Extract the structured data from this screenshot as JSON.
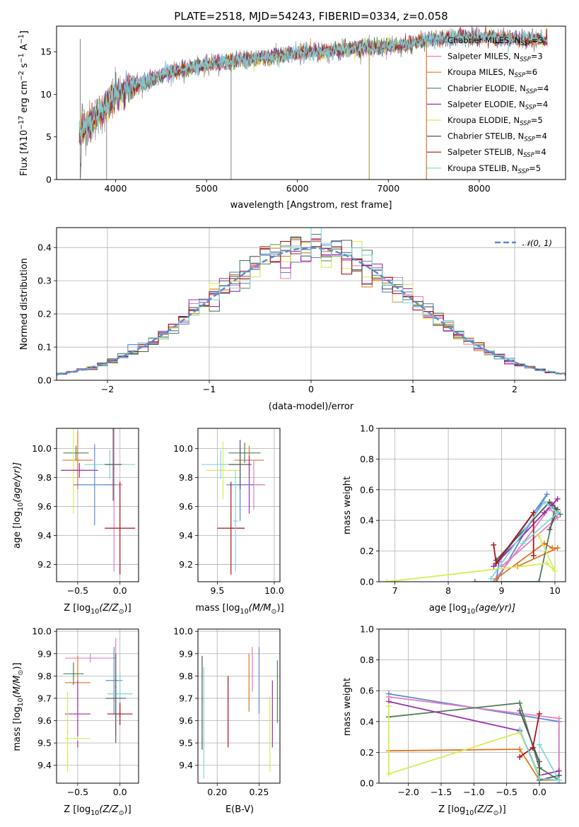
{
  "colors": {
    "Chabrier MILES": "#5b8ad4",
    "Salpeter MILES": "#e37fbf",
    "Kroupa MILES": "#e0761f",
    "Chabrier ELODIE": "#4e7f59",
    "Salpeter ELODIE": "#9b2fae",
    "Kroupa ELODIE": "#d9eb56",
    "Chabrier STELIB": "#555555",
    "Salpeter STELIB": "#a8141a",
    "Kroupa STELIB": "#80d6dc",
    "gaussian": "#5b8ad4",
    "observed": "#7a7a7a"
  },
  "chart_data": [
    {
      "id": "spectrum",
      "type": "line",
      "title": "PLATE=2518, MJD=54243, FIBERID=0334, z=0.058",
      "xlabel": "wavelength [Angstrom, rest frame]",
      "ylabel_parts": [
        "Flux [f",
        "λ",
        "10",
        "−17",
        " erg cm",
        "−2",
        " s",
        "−1",
        " A",
        "−1",
        "]"
      ],
      "xlim": [
        3350,
        8950
      ],
      "ylim": [
        0,
        18
      ],
      "xticks": [
        4000,
        5000,
        6000,
        7000,
        8000
      ],
      "yticks": [
        0,
        5,
        10,
        15
      ],
      "grid": false,
      "legend_position": "right",
      "legend": [
        {
          "name": "Chabrier MILES",
          "nssp": "3"
        },
        {
          "name": "Salpeter MILES",
          "nssp": "3"
        },
        {
          "name": "Kroupa MILES",
          "nssp": "6"
        },
        {
          "name": "Chabrier ELODIE",
          "nssp": "4"
        },
        {
          "name": "Salpeter ELODIE",
          "nssp": "4"
        },
        {
          "name": "Kroupa ELODIE",
          "nssp": "5"
        },
        {
          "name": "Chabrier STELIB",
          "nssp": "4"
        },
        {
          "name": "Salpeter STELIB",
          "nssp": "4"
        },
        {
          "name": "Kroupa STELIB",
          "nssp": "5"
        }
      ],
      "nssp_prefix": "N",
      "nssp_sub": "SSP",
      "continuum": [
        [
          3600,
          5.5
        ],
        [
          3700,
          6.5
        ],
        [
          3800,
          7.5
        ],
        [
          3900,
          8.5
        ],
        [
          4000,
          10.0
        ],
        [
          4100,
          10.5
        ],
        [
          4200,
          11.0
        ],
        [
          4300,
          11.3
        ],
        [
          4400,
          11.8
        ],
        [
          4500,
          12.3
        ],
        [
          4600,
          12.6
        ],
        [
          4800,
          13.0
        ],
        [
          5000,
          13.5
        ],
        [
          5200,
          13.8
        ],
        [
          5500,
          14.2
        ],
        [
          5800,
          14.5
        ],
        [
          6000,
          14.8
        ],
        [
          6300,
          15.0
        ],
        [
          6500,
          15.3
        ],
        [
          6800,
          15.5
        ],
        [
          7000,
          15.6
        ],
        [
          7200,
          15.9
        ],
        [
          7400,
          16.3
        ],
        [
          7600,
          16.6
        ],
        [
          7800,
          16.8
        ],
        [
          8000,
          16.7
        ],
        [
          8200,
          16.6
        ],
        [
          8400,
          16.5
        ],
        [
          8600,
          16.4
        ],
        [
          8750,
          16.4
        ]
      ],
      "observed_end": 7420,
      "spikes": [
        {
          "x": 3900,
          "lo": 0,
          "hi": 7.5
        },
        {
          "x": 5270,
          "lo": 0,
          "hi": 13.5
        },
        {
          "x": 6790,
          "lo": 0,
          "hi": 15.5
        },
        {
          "x": 7420,
          "lo": 0,
          "hi": 16.3
        }
      ]
    },
    {
      "id": "residuals",
      "type": "histogram",
      "xlabel": "(data-model)/error",
      "ylabel": "Normed distribution",
      "xlim": [
        -2.5,
        2.5
      ],
      "ylim": [
        0,
        0.46
      ],
      "xticks": [
        -2,
        -1,
        0,
        1,
        2
      ],
      "yticks": [
        0.0,
        0.1,
        0.2,
        0.3,
        0.4
      ],
      "grid": true,
      "bin_width": 0.1,
      "legend_position": "top-right",
      "gaussian_label": "𝒩(0, 1)"
    },
    {
      "id": "age_vs_Z",
      "type": "errorbar",
      "xlabel_parts": [
        "Z [log",
        "10",
        "(Z/Z",
        "⊙",
        ")]"
      ],
      "ylabel_parts": [
        "age  [log",
        "10",
        "(age/yr)]"
      ],
      "xlim": [
        -0.75,
        0.22
      ],
      "ylim": [
        9.08,
        10.14
      ],
      "xticks": [
        -0.5,
        0.0
      ],
      "yticks": [
        9.2,
        9.4,
        9.6,
        9.8,
        10.0
      ],
      "grid": true,
      "points": [
        {
          "series": "Kroupa MILES",
          "x": -0.5,
          "xerr": 0.18,
          "y": 9.92,
          "yerr": 0.2
        },
        {
          "series": "Chabrier ELODIE",
          "x": -0.52,
          "xerr": 0.15,
          "y": 9.97,
          "yerr": 0.05
        },
        {
          "series": "Kroupa ELODIE",
          "x": -0.55,
          "xerr": 0.12,
          "y": 9.85,
          "yerr": 0.3
        },
        {
          "series": "Salpeter ELODIE",
          "x": -0.48,
          "xerr": 0.22,
          "y": 9.85,
          "yerr": 0.05
        },
        {
          "series": "Salpeter MILES",
          "x": -0.07,
          "xerr": 0.1,
          "y": 9.75,
          "yerr": 0.6
        },
        {
          "series": "Chabrier MILES",
          "x": -0.3,
          "xerr": 0.25,
          "y": 9.75,
          "yerr": 0.28
        },
        {
          "series": "Kroupa STELIB",
          "x": -0.12,
          "xerr": 0.3,
          "y": 9.89,
          "yerr": 0.1
        },
        {
          "series": "Chabrier STELIB",
          "x": -0.08,
          "xerr": 0.1,
          "y": 9.89,
          "yerr": 0.25
        },
        {
          "series": "Salpeter STELIB",
          "x": 0.0,
          "xerr": 0.18,
          "y": 9.45,
          "yerr": 0.32
        }
      ]
    },
    {
      "id": "age_vs_mass",
      "type": "errorbar",
      "xlabel_parts": [
        "mass [log",
        "10",
        "(M/M",
        "⊙",
        ")]"
      ],
      "xlim": [
        9.33,
        10.05
      ],
      "ylim": [
        9.08,
        10.14
      ],
      "xticks": [
        9.5,
        10.0
      ],
      "yticks": [
        9.2,
        9.4,
        9.6,
        9.8,
        10.0
      ],
      "grid": true,
      "points": [
        {
          "series": "Kroupa MILES",
          "x": 9.78,
          "xerr": 0.13,
          "y": 9.92,
          "yerr": 0.1
        },
        {
          "series": "Chabrier ELODIE",
          "x": 9.74,
          "xerr": 0.14,
          "y": 9.97,
          "yerr": 0.07
        },
        {
          "series": "Kroupa ELODIE",
          "x": 9.55,
          "xerr": 0.15,
          "y": 9.85,
          "yerr": 0.2
        },
        {
          "series": "Salpeter ELODIE",
          "x": 9.78,
          "xerr": 0.12,
          "y": 9.75,
          "yerr": 0.2
        },
        {
          "series": "Salpeter MILES",
          "x": 9.82,
          "xerr": 0.1,
          "y": 9.75,
          "yerr": 0.17
        },
        {
          "series": "Chabrier MILES",
          "x": 9.7,
          "xerr": 0.12,
          "y": 9.75,
          "yerr": 0.25
        },
        {
          "series": "Kroupa STELIB",
          "x": 9.53,
          "xerr": 0.17,
          "y": 9.89,
          "yerr": 0.1
        },
        {
          "series": "Chabrier STELIB",
          "x": 9.7,
          "xerr": 0.1,
          "y": 9.89,
          "yerr": 0.17
        },
        {
          "series": "Salpeter STELIB",
          "x": 9.62,
          "xerr": 0.12,
          "y": 9.45,
          "yerr": 0.32
        },
        {
          "series": "Kroupa STELIB",
          "x": 9.66,
          "xerr": 0.02,
          "y": 9.5,
          "yerr": 0.35
        }
      ]
    },
    {
      "id": "weight_vs_age",
      "type": "line",
      "xlabel_parts": [
        "age  [log",
        "10",
        "(age/yr)]"
      ],
      "ylabel": "mass weight",
      "xlim": [
        6.7,
        10.2
      ],
      "ylim": [
        0,
        1.0
      ],
      "xticks": [
        7,
        8,
        9,
        10
      ],
      "yticks": [
        0.0,
        0.2,
        0.4,
        0.6,
        0.8,
        1.0
      ],
      "grid": true,
      "series": [
        {
          "name": "Chabrier MILES",
          "points": [
            [
              8.9,
              0.0
            ],
            [
              9.85,
              0.57
            ],
            [
              8.95,
              0.13
            ],
            [
              8.9,
              0.0
            ]
          ]
        },
        {
          "name": "Salpeter MILES",
          "points": [
            [
              8.85,
              0.0
            ],
            [
              9.9,
              0.48
            ],
            [
              10.05,
              0.42
            ],
            [
              9.0,
              0.1
            ]
          ]
        },
        {
          "name": "Kroupa MILES",
          "points": [
            [
              8.9,
              0.02
            ],
            [
              9.8,
              0.25
            ],
            [
              9.95,
              0.22
            ],
            [
              10.05,
              0.22
            ],
            [
              9.3,
              0.1
            ]
          ]
        },
        {
          "name": "Chabrier ELODIE",
          "points": [
            [
              8.5,
              0.0
            ],
            [
              9.7,
              0.0
            ],
            [
              10.0,
              0.48
            ],
            [
              10.1,
              0.44
            ]
          ]
        },
        {
          "name": "Salpeter ELODIE",
          "points": [
            [
              8.85,
              0.1
            ],
            [
              9.8,
              0.45
            ],
            [
              10.05,
              0.54
            ],
            [
              9.95,
              0.5
            ]
          ]
        },
        {
          "name": "Kroupa ELODIE",
          "points": [
            [
              6.85,
              0.0
            ],
            [
              9.85,
              0.12
            ],
            [
              10.0,
              0.07
            ],
            [
              9.7,
              0.3
            ]
          ]
        },
        {
          "name": "Chabrier STELIB",
          "points": [
            [
              8.9,
              0.14
            ],
            [
              9.9,
              0.52
            ],
            [
              10.05,
              0.47
            ],
            [
              9.9,
              0.34
            ]
          ]
        },
        {
          "name": "Salpeter STELIB",
          "points": [
            [
              8.85,
              0.24
            ],
            [
              8.9,
              0.12
            ],
            [
              9.6,
              0.45
            ],
            [
              9.6,
              0.17
            ]
          ]
        },
        {
          "name": "Kroupa STELIB",
          "points": [
            [
              8.8,
              0.02
            ],
            [
              9.8,
              0.52
            ],
            [
              10.05,
              0.45
            ],
            [
              9.4,
              0.25
            ]
          ]
        }
      ]
    },
    {
      "id": "mass_vs_Z",
      "type": "errorbar",
      "xlabel_parts": [
        "Z [log",
        "10",
        "(Z/Z",
        "⊙",
        ")]"
      ],
      "ylabel_parts": [
        "mass [log",
        "10",
        "(M/M",
        "⊙",
        ")]"
      ],
      "xlim": [
        -0.75,
        0.22
      ],
      "ylim": [
        9.32,
        10.01
      ],
      "xticks": [
        -0.5,
        0.0
      ],
      "yticks": [
        9.4,
        9.5,
        9.6,
        9.7,
        9.8,
        9.9,
        10.0
      ],
      "grid": true,
      "points": [
        {
          "series": "Salpeter MILES",
          "x": -0.35,
          "xerr": 0.3,
          "y": 9.88,
          "yerr": 0.02
        },
        {
          "series": "Kroupa MILES",
          "x": -0.5,
          "xerr": 0.15,
          "y": 9.77,
          "yerr": 0.12
        },
        {
          "series": "Chabrier ELODIE",
          "x": -0.55,
          "xerr": 0.12,
          "y": 9.81,
          "yerr": 0.05
        },
        {
          "series": "Salpeter ELODIE",
          "x": -0.5,
          "xerr": 0.15,
          "y": 9.63,
          "yerr": 0.15
        },
        {
          "series": "Kroupa ELODIE",
          "x": -0.5,
          "xerr": 0.15,
          "y": 9.52,
          "yerr": 0.01
        },
        {
          "series": "Kroupa ELODIE",
          "x": -0.62,
          "xerr": 0.01,
          "y": 9.55,
          "yerr": 0.18
        },
        {
          "series": "Chabrier MILES",
          "x": -0.07,
          "xerr": 0.1,
          "y": 9.78,
          "yerr": 0.15
        },
        {
          "series": "Salpeter MILES",
          "x": -0.05,
          "xerr": 0.01,
          "y": 9.75,
          "yerr": 0.22
        },
        {
          "series": "Kroupa STELIB",
          "x": 0.0,
          "xerr": 0.15,
          "y": 9.72,
          "yerr": 0.1
        },
        {
          "series": "Chabrier STELIB",
          "x": -0.05,
          "xerr": 0.12,
          "y": 9.7,
          "yerr": 0.2
        },
        {
          "series": "Salpeter STELIB",
          "x": 0.0,
          "xerr": 0.15,
          "y": 9.63,
          "yerr": 0.05
        }
      ]
    },
    {
      "id": "mass_vs_ebv",
      "type": "errorbar",
      "xlabel": "E(B-V)",
      "xlim": [
        0.177,
        0.275
      ],
      "ylim": [
        9.32,
        10.01
      ],
      "xticks": [
        0.2,
        0.25
      ],
      "yticks": [
        9.4,
        9.5,
        9.6,
        9.7,
        9.8,
        9.9,
        10.0
      ],
      "grid": true,
      "points": [
        {
          "series": "Chabrier STELIB",
          "x": 0.182,
          "xerr": 0.0,
          "y": 9.68,
          "yerr": 0.21
        },
        {
          "series": "Kroupa STELIB",
          "x": 0.184,
          "xerr": 0.0,
          "y": 9.59,
          "yerr": 0.25
        },
        {
          "series": "Salpeter STELIB",
          "x": 0.213,
          "xerr": 0.0,
          "y": 9.64,
          "yerr": 0.16
        },
        {
          "series": "Kroupa MILES",
          "x": 0.238,
          "xerr": 0.0,
          "y": 9.77,
          "yerr": 0.13
        },
        {
          "series": "Salpeter MILES",
          "x": 0.242,
          "xerr": 0.0,
          "y": 9.83,
          "yerr": 0.1
        },
        {
          "series": "Chabrier MILES",
          "x": 0.25,
          "xerr": 0.0,
          "y": 9.78,
          "yerr": 0.15
        },
        {
          "series": "Kroupa ELODIE",
          "x": 0.263,
          "xerr": 0.0,
          "y": 9.54,
          "yerr": 0.17
        },
        {
          "series": "Salpeter ELODIE",
          "x": 0.266,
          "xerr": 0.0,
          "y": 9.63,
          "yerr": 0.15
        },
        {
          "series": "Chabrier ELODIE",
          "x": 0.272,
          "xerr": 0.0,
          "y": 9.73,
          "yerr": 0.14
        }
      ]
    },
    {
      "id": "weight_vs_Z",
      "type": "line",
      "xlabel_parts": [
        "Z [log",
        "10",
        "(Z/Z",
        "⊙",
        ")]"
      ],
      "ylabel": "mass weight",
      "xlim": [
        -2.45,
        0.4
      ],
      "ylim": [
        0,
        1.0
      ],
      "xticks": [
        -2.0,
        -1.5,
        -1.0,
        -0.5,
        0.0
      ],
      "yticks": [
        0.0,
        0.2,
        0.4,
        0.6,
        0.8,
        1.0
      ],
      "grid": true,
      "series": [
        {
          "name": "Chabrier MILES",
          "points": [
            [
              -2.3,
              0.58
            ],
            [
              0.3,
              0.4
            ],
            [
              0.3,
              0.0
            ]
          ]
        },
        {
          "name": "Salpeter MILES",
          "points": [
            [
              -2.3,
              0.56
            ],
            [
              0.3,
              0.42
            ],
            [
              0.3,
              0.05
            ]
          ]
        },
        {
          "name": "Kroupa MILES",
          "points": [
            [
              -2.3,
              0.21
            ],
            [
              -0.3,
              0.22
            ],
            [
              0.0,
              0.02
            ],
            [
              0.3,
              0.02
            ]
          ]
        },
        {
          "name": "Chabrier ELODIE",
          "points": [
            [
              -2.3,
              0.43
            ],
            [
              -0.3,
              0.52
            ],
            [
              0.0,
              0.1
            ],
            [
              0.3,
              0.02
            ]
          ]
        },
        {
          "name": "Salpeter ELODIE",
          "points": [
            [
              -2.3,
              0.53
            ],
            [
              -0.3,
              0.34
            ],
            [
              0.0,
              0.05
            ],
            [
              0.3,
              0.08
            ]
          ]
        },
        {
          "name": "Kroupa ELODIE",
          "points": [
            [
              -2.3,
              0.5
            ],
            [
              -2.3,
              0.06
            ],
            [
              -0.3,
              0.33
            ],
            [
              0.0,
              0.05
            ]
          ]
        },
        {
          "name": "Chabrier STELIB",
          "points": [
            [
              -0.3,
              0.47
            ],
            [
              0.0,
              0.14
            ],
            [
              0.0,
              0.02
            ],
            [
              0.3,
              0.05
            ]
          ]
        },
        {
          "name": "Salpeter STELIB",
          "points": [
            [
              -0.3,
              0.17
            ],
            [
              -0.1,
              0.23
            ],
            [
              0.0,
              0.45
            ]
          ]
        },
        {
          "name": "Kroupa STELIB",
          "points": [
            [
              -0.3,
              0.35
            ],
            [
              0.0,
              0.03
            ],
            [
              0.3,
              0.02
            ],
            [
              0.0,
              0.25
            ]
          ]
        }
      ]
    }
  ]
}
